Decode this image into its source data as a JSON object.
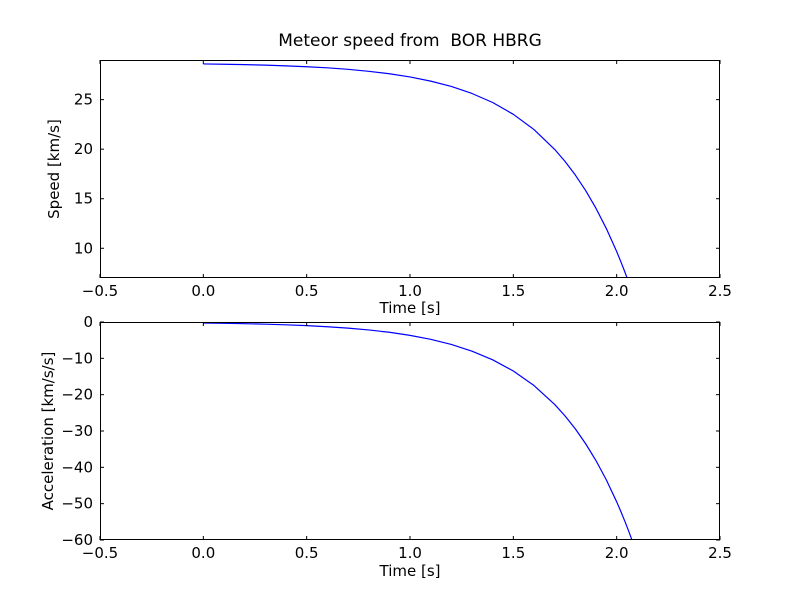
{
  "figure": {
    "background": "#ffffff",
    "axes_color": "#000000",
    "line_color": "#0000ff"
  },
  "chart_data": [
    {
      "type": "line",
      "title": "Meteor speed from  BOR HBRG",
      "xlabel": "Time [s]",
      "ylabel": "Speed [km/s]",
      "xlim": [
        -0.5,
        2.5
      ],
      "ylim": [
        7,
        29
      ],
      "xticks": [
        -0.5,
        0,
        0.5,
        1,
        1.5,
        2,
        2.5
      ],
      "xtick_labels": [
        "−0.5",
        "0.0",
        "0.5",
        "1.0",
        "1.5",
        "2.0",
        "2.5"
      ],
      "yticks": [
        10,
        15,
        20,
        25
      ],
      "ytick_labels": [
        "10",
        "15",
        "20",
        "25"
      ],
      "grid": false,
      "legend": false,
      "series": [
        {
          "name": "speed",
          "color": "#0000ff",
          "x": [
            0,
            0.1,
            0.2,
            0.3,
            0.4,
            0.5,
            0.6,
            0.7,
            0.8,
            0.9,
            1.0,
            1.1,
            1.2,
            1.3,
            1.4,
            1.5,
            1.6,
            1.7,
            1.75,
            1.8,
            1.85,
            1.9,
            1.95,
            2.0,
            2.02,
            2.04,
            2.06,
            2.08
          ],
          "y": [
            28.6,
            28.57,
            28.53,
            28.48,
            28.41,
            28.32,
            28.21,
            28.06,
            27.86,
            27.61,
            27.29,
            26.87,
            26.33,
            25.62,
            24.71,
            23.52,
            21.98,
            19.98,
            18.77,
            17.39,
            15.82,
            14.03,
            11.99,
            9.67,
            8.66,
            7.59,
            6.46,
            5.27
          ]
        }
      ]
    },
    {
      "type": "line",
      "title": "",
      "xlabel": "Time [s]",
      "ylabel": "Acceleration [km/s/s]",
      "xlim": [
        -0.5,
        2.5
      ],
      "ylim": [
        -60,
        0
      ],
      "xticks": [
        -0.5,
        0,
        0.5,
        1,
        1.5,
        2,
        2.5
      ],
      "xtick_labels": [
        "−0.5",
        "0.0",
        "0.5",
        "1.0",
        "1.5",
        "2.0",
        "2.5"
      ],
      "yticks": [
        0,
        -10,
        -20,
        -30,
        -40,
        -50,
        -60
      ],
      "ytick_labels": [
        "0",
        "−10",
        "−20",
        "−30",
        "−40",
        "−50",
        "−60"
      ],
      "grid": false,
      "legend": false,
      "series": [
        {
          "name": "acceleration",
          "color": "#0000ff",
          "x": [
            0,
            0.1,
            0.2,
            0.3,
            0.4,
            0.5,
            0.6,
            0.7,
            0.8,
            0.9,
            1.0,
            1.1,
            1.2,
            1.3,
            1.4,
            1.5,
            1.6,
            1.7,
            1.75,
            1.8,
            1.85,
            1.9,
            1.95,
            2.0,
            2.02,
            2.04,
            2.06,
            2.08
          ],
          "y": [
            -0.27,
            -0.35,
            -0.46,
            -0.6,
            -0.77,
            -1.0,
            -1.3,
            -1.69,
            -2.19,
            -2.83,
            -3.68,
            -4.77,
            -6.18,
            -8.02,
            -10.4,
            -13.49,
            -17.49,
            -22.69,
            -25.83,
            -29.42,
            -33.51,
            -38.16,
            -43.45,
            -49.49,
            -52.12,
            -54.89,
            -57.85,
            -60.93
          ]
        }
      ]
    }
  ]
}
